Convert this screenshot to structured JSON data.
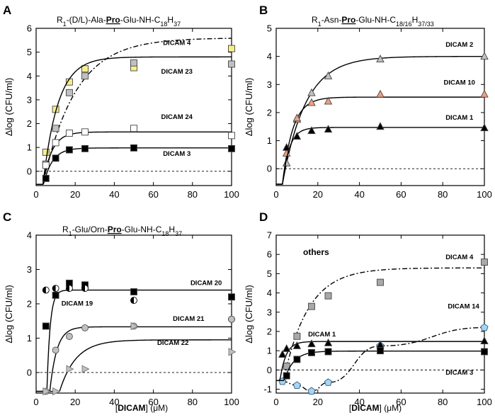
{
  "chart_data": [
    {
      "type": "scatter",
      "panel": "A",
      "title": "R1-(D/L)-Ala-Pro-Glu-NH-C18H37",
      "title_parts": [
        {
          "t": "R",
          "s": "n"
        },
        {
          "t": "1",
          "s": "sub"
        },
        {
          "t": "-(D/L)-Ala-",
          "s": "n"
        },
        {
          "t": "Pro",
          "s": "b"
        },
        {
          "t": "-Glu-NH-C",
          "s": "n"
        },
        {
          "t": "18",
          "s": "sub"
        },
        {
          "t": "H",
          "s": "n"
        },
        {
          "t": "37",
          "s": "sub"
        }
      ],
      "xlabel": "",
      "ylabel": "Δlog (CFU/ml)",
      "xlim": [
        0,
        100
      ],
      "ylim": [
        -0.6,
        6
      ],
      "xticks": [
        0,
        20,
        40,
        60,
        80,
        100
      ],
      "yticks": [
        0,
        1,
        2,
        3,
        4,
        5,
        6
      ],
      "yticklabels": [
        "0",
        "1",
        "2",
        "3",
        "4",
        "5",
        "6"
      ],
      "baseline": 0,
      "series": [
        {
          "name": "DICAM 4",
          "marker": "square",
          "fill": "#f7ef8a",
          "x": [
            5,
            10,
            17,
            25,
            50,
            100
          ],
          "y": [
            0.8,
            2.6,
            3.75,
            4.3,
            4.35,
            5.15
          ],
          "line": "dashdot",
          "p": {
            "A": 5.6,
            "k": 0.06,
            "x0": 3.5
          }
        },
        {
          "name": "DICAM 23",
          "marker": "square",
          "fill": "#c0c0c0",
          "x": [
            5,
            10,
            17,
            25,
            50,
            100
          ],
          "y": [
            0.3,
            1.8,
            3.3,
            4.0,
            4.55,
            4.5
          ],
          "line": "solid",
          "p": {
            "A": 4.8,
            "k": 0.13,
            "x0": 3.5
          }
        },
        {
          "name": "DICAM 24",
          "marker": "square",
          "fill": "#ffffff",
          "x": [
            5,
            10,
            17,
            25,
            50,
            100
          ],
          "y": [
            0.25,
            1.2,
            1.6,
            1.65,
            1.8,
            1.5
          ],
          "line": "solid",
          "p": {
            "A": 1.65,
            "k": 0.22,
            "x0": 3.5
          }
        },
        {
          "name": "DICAM 3",
          "marker": "square",
          "fill": "#000000",
          "x": [
            5,
            10,
            17,
            25,
            50,
            100
          ],
          "y": [
            -0.3,
            0.55,
            0.9,
            0.95,
            0.98,
            0.95
          ],
          "line": "solid",
          "p": {
            "A": 0.98,
            "k": 0.22,
            "x0": 3.8
          }
        }
      ],
      "labels": [
        {
          "text": "DICAM 4",
          "x": 72,
          "y": 5.3
        },
        {
          "text": "DICAM 23",
          "x": 72,
          "y": 4.1
        },
        {
          "text": "DICAM 24",
          "x": 72,
          "y": 2.2
        },
        {
          "text": "DICAM 3",
          "x": 72,
          "y": 0.65
        }
      ]
    },
    {
      "type": "scatter",
      "panel": "B",
      "title": "R1-Asn-Pro-Glu-NH-C18/16H37/33",
      "title_parts": [
        {
          "t": "R",
          "s": "n"
        },
        {
          "t": "1",
          "s": "sub"
        },
        {
          "t": "-Asn-",
          "s": "n"
        },
        {
          "t": "Pro",
          "s": "b"
        },
        {
          "t": "-Glu-NH-C",
          "s": "n"
        },
        {
          "t": "18/16",
          "s": "sub"
        },
        {
          "t": "H",
          "s": "n"
        },
        {
          "t": "37/33",
          "s": "sub"
        }
      ],
      "xlabel": "",
      "ylabel": "Δlog (CFU/ml)",
      "xlim": [
        0,
        100
      ],
      "ylim": [
        -0.6,
        5
      ],
      "xticks": [
        0,
        20,
        40,
        60,
        80,
        100
      ],
      "yticks": [
        0,
        1,
        2,
        3,
        4,
        5
      ],
      "yticklabels": [
        "0",
        "1",
        "2",
        "3",
        "4",
        "5"
      ],
      "baseline": 0,
      "series": [
        {
          "name": "DICAM 2",
          "marker": "triangle",
          "fill": "#c0c0c0",
          "x": [
            5,
            10,
            17,
            25,
            50,
            100
          ],
          "y": [
            0.2,
            1.75,
            2.7,
            3.3,
            3.9,
            4.0
          ],
          "line": "solid",
          "p": {
            "A": 4.0,
            "k": 0.09,
            "x0": 3.0
          }
        },
        {
          "name": "DICAM 10",
          "marker": "triangle",
          "fill": "#f0a080",
          "x": [
            5,
            10,
            17,
            25,
            50,
            100
          ],
          "y": [
            0.55,
            1.8,
            2.35,
            2.4,
            2.65,
            2.65
          ],
          "line": "solid",
          "p": {
            "A": 2.55,
            "k": 0.2,
            "x0": 3.0
          }
        },
        {
          "name": "DICAM 1",
          "marker": "triangle",
          "fill": "#000000",
          "x": [
            5,
            10,
            17,
            25,
            50,
            100
          ],
          "y": [
            0.75,
            1.15,
            1.35,
            1.4,
            1.5,
            1.45
          ],
          "line": "solid",
          "p": {
            "A": 1.47,
            "k": 0.3,
            "x0": 3.0
          }
        }
      ],
      "labels": [
        {
          "text": "DICAM 2",
          "x": 88,
          "y": 4.35
        },
        {
          "text": "DICAM 10",
          "x": 88,
          "y": 3.0
        },
        {
          "text": "DICAM 1",
          "x": 88,
          "y": 1.75
        }
      ]
    },
    {
      "type": "scatter",
      "panel": "C",
      "title": "R1-Glu/Orn-Pro-Glu-NH-C18H37",
      "title_parts": [
        {
          "t": "R",
          "s": "n"
        },
        {
          "t": "1",
          "s": "sub"
        },
        {
          "t": "-Glu/Orn-",
          "s": "n"
        },
        {
          "t": "Pro",
          "s": "b"
        },
        {
          "t": "-Glu-NH-C",
          "s": "n"
        },
        {
          "t": "18",
          "s": "sub"
        },
        {
          "t": "H",
          "s": "n"
        },
        {
          "t": "37",
          "s": "sub"
        }
      ],
      "xlabel": "[DICAM] (μM)",
      "ylabel": "Δlog (CFU/ml)",
      "xlim": [
        0,
        100
      ],
      "ylim": [
        -0.6,
        4
      ],
      "xticks": [
        0,
        20,
        40,
        60,
        80,
        100
      ],
      "yticks": [
        0,
        1,
        2,
        3,
        4
      ],
      "yticklabels": [
        "0",
        "1",
        "2",
        "3",
        "4"
      ],
      "baseline": 0,
      "series": [
        {
          "name": "DICAM 20",
          "marker": "square",
          "fill": "#000000",
          "x": [
            5,
            10,
            17,
            25,
            50,
            100
          ],
          "y": [
            1.35,
            2.25,
            2.6,
            2.55,
            2.35,
            2.2
          ],
          "line": "solid",
          "p": {
            "A": 2.4,
            "k": 0.6,
            "x0": 5.5,
            "base": -0.55
          }
        },
        {
          "name": "DICAM 19",
          "marker": "halfcircle",
          "fill": "#000000",
          "x": [
            5,
            10,
            17,
            25,
            50,
            100
          ],
          "y": [
            2.4,
            2.45,
            2.45,
            2.45,
            2.1,
            1.55
          ],
          "line": "none"
        },
        {
          "name": "DICAM 21",
          "marker": "circle",
          "fill": "#c0c0c0",
          "x": [
            5,
            10,
            17,
            25,
            50,
            100
          ],
          "y": [
            -0.55,
            0.65,
            1.05,
            1.3,
            1.35,
            1.55
          ],
          "line": "solid",
          "p": {
            "A": 1.33,
            "k": 0.28,
            "x0": 7.0,
            "base": -0.55
          }
        },
        {
          "name": "DICAM 22",
          "marker": "triangle-right",
          "fill": "#c0c0c0",
          "x": [
            5,
            10,
            17,
            25,
            50,
            100
          ],
          "y": [
            -0.55,
            -0.55,
            0.1,
            0.1,
            1.35,
            0.6
          ],
          "line": "solid",
          "p": {
            "A": 0.95,
            "k": 0.12,
            "x0": 12.0,
            "base": -0.55
          }
        }
      ],
      "labels": [
        {
          "text": "DICAM 20",
          "x": 87,
          "y": 2.55
        },
        {
          "text": "DICAM 19",
          "x": 21,
          "y": 1.95
        },
        {
          "text": "DICAM 21",
          "x": 78,
          "y": 1.5
        },
        {
          "text": "DICAM 22",
          "x": 70,
          "y": 0.8
        }
      ]
    },
    {
      "type": "scatter",
      "panel": "D",
      "title": "others",
      "xlabel": "[DICAM] (μM)",
      "ylabel": "Δlog (CFU/ml)",
      "xlim": [
        0,
        100
      ],
      "ylim": [
        -1.2,
        7
      ],
      "xticks": [
        0,
        20,
        40,
        60,
        80,
        100
      ],
      "yticks": [
        -1,
        0,
        1,
        2,
        3,
        4,
        5,
        6,
        7
      ],
      "yticklabels": [
        "-1",
        "0",
        "1",
        "2",
        "3",
        "4",
        "5",
        "6",
        "7"
      ],
      "baseline": 0,
      "series": [
        {
          "name": "DICAM 4",
          "marker": "square",
          "fill": "#a8a8a8",
          "x": [
            5,
            10,
            17,
            25,
            50,
            100
          ],
          "y": [
            0.2,
            1.75,
            3.3,
            3.85,
            4.55,
            5.6
          ],
          "line": "dashdot",
          "p": {
            "A": 5.3,
            "k": 0.085,
            "x0": 3.5
          }
        },
        {
          "name": "DICAM 14",
          "marker": "pentagon",
          "fill": "#a8d4f0",
          "x": [
            3,
            10,
            17,
            25,
            50,
            100
          ],
          "y": [
            -0.6,
            -0.8,
            -1.1,
            -0.65,
            1.25,
            2.2
          ],
          "line": "dashdot"
        },
        {
          "name": "DICAM 1",
          "marker": "triangle",
          "fill": "#000000",
          "x": [
            3,
            5,
            10,
            17,
            25,
            50,
            100
          ],
          "y": [
            0.8,
            1.1,
            1.25,
            1.35,
            1.4,
            1.3,
            1.5
          ],
          "line": "solid",
          "p": {
            "A": 1.48,
            "k": 0.35,
            "x0": 1.8
          }
        },
        {
          "name": "DICAM 3",
          "marker": "square",
          "fill": "#000000",
          "x": [
            5,
            10,
            17,
            25,
            50,
            100
          ],
          "y": [
            -0.3,
            0.55,
            0.9,
            0.95,
            1.0,
            0.95
          ],
          "line": "solid",
          "p": {
            "A": 0.98,
            "k": 0.22,
            "x0": 3.8
          }
        }
      ],
      "labels": [
        {
          "text": "DICAM 4",
          "x": 88,
          "y": 5.75
        },
        {
          "text": "DICAM 14",
          "x": 90,
          "y": 3.2
        },
        {
          "text": "DICAM 1",
          "x": 22,
          "y": 1.75
        },
        {
          "text": "DICAM 3",
          "x": 88,
          "y": -0.25
        }
      ]
    }
  ]
}
